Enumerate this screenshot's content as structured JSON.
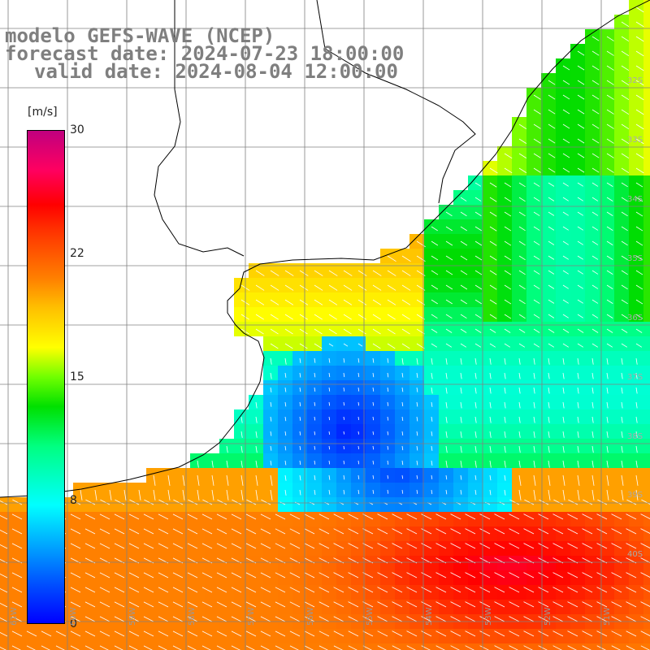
{
  "title": {
    "line1": "modelo GEFS-WAVE (NCEP)",
    "line2": "forecast date: 2024-07-23 18:00:00",
    "line3": "valid date: 2024-08-04 12:00:00"
  },
  "colorbar": {
    "unit": "[m/s]",
    "ticks": [
      "30",
      "22",
      "15",
      "8",
      "0"
    ],
    "tick_values": [
      30,
      22,
      15,
      8,
      0
    ],
    "range": [
      0,
      30
    ]
  },
  "axes": {
    "lat_labels": [
      "32S",
      "33S",
      "34S",
      "35S",
      "36S",
      "37S",
      "38S",
      "39S",
      "40S"
    ],
    "lon_labels": [
      "61W",
      "60W",
      "59W",
      "58W",
      "57W",
      "56W",
      "55W",
      "54W",
      "53W",
      "52W",
      "51W"
    ]
  },
  "colors": {
    "title_gray": "#7f7f7f",
    "land": "#ffffff",
    "coast": "#000000",
    "grid": "#808080",
    "arrow": "#ffffff"
  }
}
